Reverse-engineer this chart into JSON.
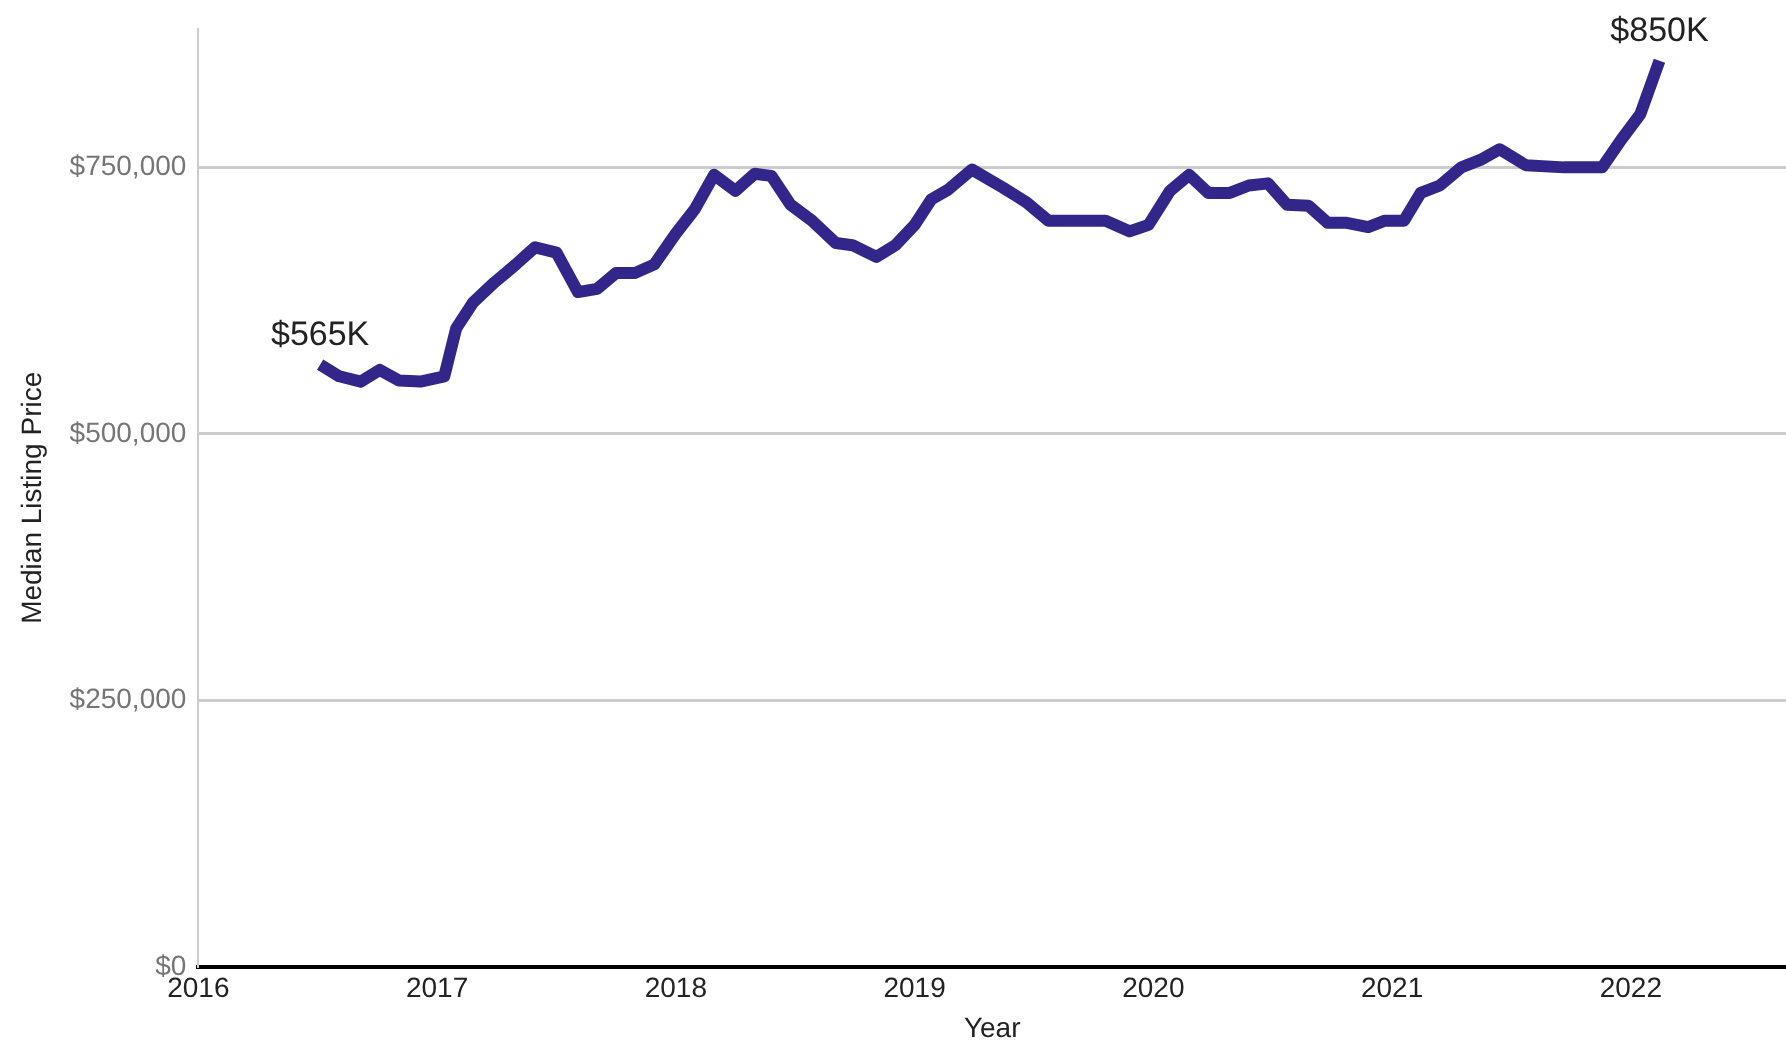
{
  "chart_data": {
    "type": "line",
    "xlabel": "Year",
    "ylabel": "Median Listing Price",
    "x": [
      2016.51,
      2016.59,
      2016.68,
      2016.76,
      2016.84,
      2016.93,
      2017.03,
      2017.08,
      2017.15,
      2017.24,
      2017.33,
      2017.41,
      2017.5,
      2017.59,
      2017.67,
      2017.75,
      2017.83,
      2017.91,
      2018.0,
      2018.08,
      2018.16,
      2018.25,
      2018.33,
      2018.4,
      2018.48,
      2018.57,
      2018.67,
      2018.74,
      2018.84,
      2018.92,
      2019.0,
      2019.07,
      2019.14,
      2019.24,
      2019.37,
      2019.47,
      2019.56,
      2019.69,
      2019.8,
      2019.9,
      2019.98,
      2020.07,
      2020.15,
      2020.23,
      2020.32,
      2020.4,
      2020.48,
      2020.56,
      2020.65,
      2020.73,
      2020.81,
      2020.9,
      2020.97,
      2021.05,
      2021.12,
      2021.2,
      2021.29,
      2021.37,
      2021.45,
      2021.56,
      2021.72,
      2021.88,
      2021.96,
      2022.04,
      2022.12
    ],
    "series": [
      {
        "color": "#32268a",
        "values": [
          565000,
          554000,
          549000,
          560000,
          550000,
          549000,
          554000,
          599000,
          623000,
          642000,
          659000,
          675000,
          670000,
          633000,
          636000,
          651000,
          651000,
          659000,
          688000,
          711000,
          743000,
          728000,
          744000,
          742000,
          715000,
          700000,
          679000,
          677000,
          666000,
          677000,
          696000,
          720000,
          729000,
          748000,
          731000,
          717000,
          700000,
          700000,
          700000,
          690000,
          696000,
          728000,
          743000,
          726000,
          726000,
          733000,
          735000,
          715000,
          714000,
          698000,
          698000,
          694000,
          700000,
          700000,
          726000,
          733000,
          750000,
          757000,
          767000,
          752000,
          750000,
          750000,
          776000,
          800000,
          850000
        ]
      }
    ],
    "xlim": [
      2016,
      2022.65
    ],
    "xticks": [
      2016,
      2017,
      2018,
      2019,
      2020,
      2021,
      2022
    ],
    "ylim": [
      0,
      880000
    ],
    "yticks": [
      {
        "value": 0,
        "label": "$0"
      },
      {
        "value": 250000,
        "label": "$250,000"
      },
      {
        "value": 500000,
        "label": "$500,000"
      },
      {
        "value": 750000,
        "label": "$750,000"
      }
    ],
    "grid": "y",
    "legend": false,
    "marker": "none",
    "line_style": "solid",
    "annotations": [
      {
        "text": "$565K",
        "x": 2016.51,
        "y": 565000
      },
      {
        "text": "$850K",
        "x": 2022.12,
        "y": 850000
      }
    ]
  }
}
